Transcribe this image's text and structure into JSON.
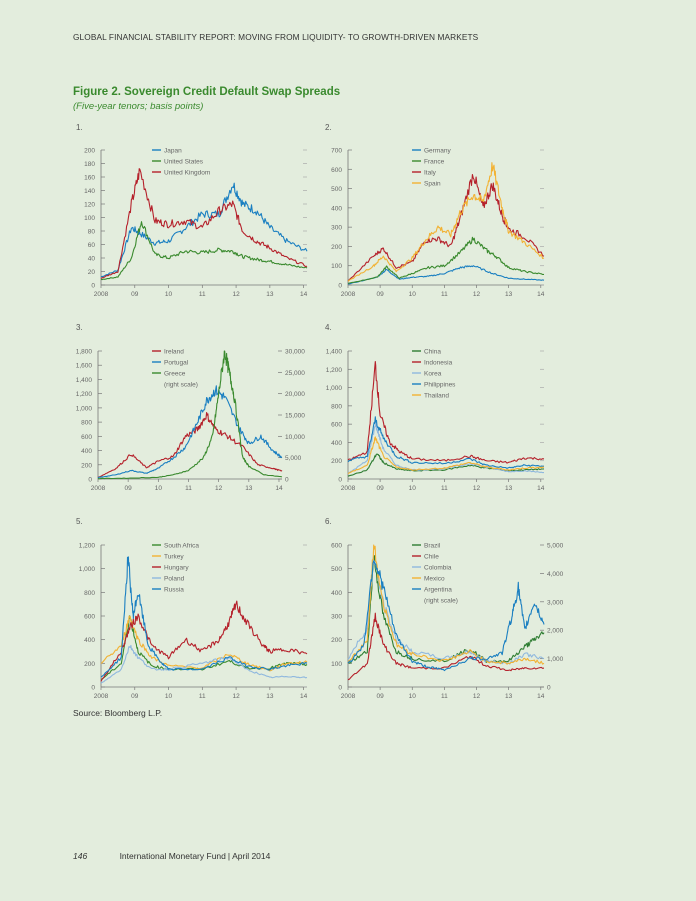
{
  "header": "GLOBAL FINANCIAL STABILITY REPORT: MOVING FROM LIQUIDITY- TO GROWTH-DRIVEN MARKETS",
  "figure": {
    "title": "Figure 2. Sovereign Credit Default Swap Spreads",
    "subtitle": "(Five-year tenors; basis points)"
  },
  "source": "Source: Bloomberg L.P.",
  "footer": {
    "page": "146",
    "publisher": "International Monetary Fund",
    "separator": "|",
    "date": "April 2014"
  },
  "colors": {
    "green": "#3a8a2e",
    "red": "#b5212b",
    "blue": "#1a7fc1",
    "orange": "#f2b233",
    "lightblue": "#8fb8de",
    "darkgreen": "#2e7d32"
  },
  "chart_data": [
    {
      "panel": "1.",
      "type": "line",
      "xlabels": [
        "2008",
        "09",
        "10",
        "11",
        "12",
        "13",
        "14"
      ],
      "xlim": [
        2008,
        2014.1
      ],
      "ylim": [
        0,
        200
      ],
      "yticks": [
        0,
        20,
        40,
        60,
        80,
        100,
        120,
        140,
        160,
        180,
        200
      ],
      "series": [
        {
          "name": "Japan",
          "color": "#1a7fc1",
          "x": [
            2008,
            2008.5,
            2008.9,
            2009.2,
            2009.6,
            2010,
            2010.5,
            2011,
            2011.5,
            2011.9,
            2012.2,
            2012.6,
            2013,
            2013.5,
            2014.1
          ],
          "y": [
            12,
            22,
            85,
            75,
            62,
            65,
            85,
            105,
            105,
            150,
            120,
            110,
            85,
            65,
            50
          ]
        },
        {
          "name": "United States",
          "color": "#3a8a2e",
          "x": [
            2008,
            2008.5,
            2008.9,
            2009.2,
            2009.6,
            2010,
            2010.5,
            2011,
            2011.5,
            2011.9,
            2012.2,
            2012.6,
            2013,
            2013.5,
            2014.1
          ],
          "y": [
            8,
            12,
            40,
            95,
            45,
            40,
            50,
            48,
            52,
            50,
            42,
            38,
            35,
            30,
            25
          ]
        },
        {
          "name": "United Kingdom",
          "color": "#b5212b",
          "x": [
            2008,
            2008.5,
            2008.9,
            2009.15,
            2009.6,
            2010,
            2010.5,
            2011,
            2011.5,
            2011.9,
            2012.2,
            2012.6,
            2013,
            2013.5,
            2014.1
          ],
          "y": [
            10,
            20,
            120,
            170,
            95,
            90,
            95,
            85,
            110,
            120,
            80,
            65,
            55,
            40,
            28
          ]
        }
      ]
    },
    {
      "panel": "2.",
      "type": "line",
      "xlabels": [
        "2008",
        "09",
        "10",
        "11",
        "12",
        "13",
        "14"
      ],
      "xlim": [
        2008,
        2014.1
      ],
      "ylim": [
        0,
        700
      ],
      "yticks": [
        0,
        100,
        200,
        300,
        400,
        500,
        600,
        700
      ],
      "series": [
        {
          "name": "Germany",
          "color": "#1a7fc1",
          "x": [
            2008,
            2008.9,
            2009.2,
            2009.6,
            2010,
            2010.5,
            2011,
            2011.5,
            2011.9,
            2012.5,
            2013,
            2013.5,
            2014.1
          ],
          "y": [
            5,
            40,
            80,
            30,
            40,
            45,
            60,
            90,
            100,
            60,
            35,
            30,
            25
          ]
        },
        {
          "name": "France",
          "color": "#3a8a2e",
          "x": [
            2008,
            2008.9,
            2009.2,
            2009.6,
            2010,
            2010.5,
            2011,
            2011.5,
            2011.9,
            2012.3,
            2012.6,
            2013,
            2013.5,
            2014.1
          ],
          "y": [
            8,
            40,
            95,
            35,
            60,
            90,
            100,
            170,
            240,
            180,
            150,
            90,
            70,
            55
          ]
        },
        {
          "name": "Italy",
          "color": "#b5212b",
          "x": [
            2008,
            2008.8,
            2009.1,
            2009.5,
            2010,
            2010.4,
            2010.8,
            2011.2,
            2011.5,
            2011.9,
            2012.2,
            2012.5,
            2012.8,
            2013,
            2013.5,
            2014.1
          ],
          "y": [
            20,
            150,
            190,
            90,
            120,
            230,
            240,
            200,
            350,
            580,
            400,
            520,
            360,
            290,
            250,
            150
          ]
        },
        {
          "name": "Spain",
          "color": "#f2b233",
          "x": [
            2008,
            2008.8,
            2009.1,
            2009.5,
            2010,
            2010.4,
            2010.8,
            2011.2,
            2011.5,
            2011.9,
            2012.2,
            2012.5,
            2012.8,
            2013,
            2013.5,
            2014.1
          ],
          "y": [
            20,
            100,
            150,
            70,
            140,
            230,
            300,
            260,
            380,
            470,
            430,
            620,
            400,
            280,
            220,
            140
          ]
        }
      ]
    },
    {
      "panel": "3.",
      "type": "line",
      "xlabels": [
        "2008",
        "09",
        "10",
        "11",
        "12",
        "13",
        "14"
      ],
      "xlim": [
        2008,
        2014.1
      ],
      "ylim": [
        0,
        1800
      ],
      "yticks": [
        0,
        200,
        400,
        600,
        800,
        1000,
        1200,
        1400,
        1600,
        1800
      ],
      "y2lim": [
        0,
        30000
      ],
      "y2ticks": [
        0,
        5000,
        10000,
        15000,
        20000,
        25000,
        30000
      ],
      "y2ticklabels": [
        "0",
        "5,000",
        "10,000",
        "15,000",
        "20,000",
        "25,000",
        "30,000"
      ],
      "series": [
        {
          "name": "Ireland",
          "color": "#b5212b",
          "x": [
            2008,
            2008.6,
            2009.1,
            2009.6,
            2010,
            2010.5,
            2010.9,
            2011.3,
            2011.6,
            2011.9,
            2012.3,
            2012.8,
            2013.3,
            2013.8,
            2014.1
          ],
          "y": [
            20,
            150,
            350,
            160,
            250,
            320,
            600,
            700,
            900,
            700,
            600,
            450,
            200,
            150,
            110
          ]
        },
        {
          "name": "Portugal",
          "color": "#1a7fc1",
          "x": [
            2008,
            2008.6,
            2009.1,
            2009.6,
            2010,
            2010.5,
            2010.9,
            2011.3,
            2011.6,
            2011.9,
            2012.2,
            2012.7,
            2013,
            2013.4,
            2013.8,
            2014.1
          ],
          "y": [
            20,
            60,
            120,
            80,
            150,
            300,
            450,
            800,
            1100,
            1250,
            1150,
            700,
            500,
            600,
            400,
            300
          ]
        },
        {
          "name": "Greece",
          "name_line2": "(right scale)",
          "color": "#3a8a2e",
          "axis": "right",
          "x": [
            2008,
            2009,
            2010,
            2010.5,
            2011,
            2011.5,
            2011.8,
            2012,
            2012.2,
            2012.35,
            2012.5,
            2012.8,
            2013,
            2013.5,
            2014.1
          ],
          "y": [
            100,
            200,
            400,
            1000,
            2000,
            5000,
            10000,
            20000,
            30000,
            25000,
            20000,
            5000,
            3000,
            1000,
            500
          ]
        }
      ]
    },
    {
      "panel": "4.",
      "type": "line",
      "xlabels": [
        "2008",
        "09",
        "10",
        "11",
        "12",
        "13",
        "14"
      ],
      "xlim": [
        2008,
        2014.1
      ],
      "ylim": [
        0,
        1400
      ],
      "yticks": [
        0,
        200,
        400,
        600,
        800,
        1000,
        1200,
        1400
      ],
      "series": [
        {
          "name": "China",
          "color": "#2e7d32",
          "x": [
            2008,
            2008.6,
            2008.9,
            2009.1,
            2009.5,
            2010,
            2011,
            2011.8,
            2012.3,
            2013,
            2013.5,
            2014.1
          ],
          "y": [
            30,
            100,
            280,
            180,
            110,
            90,
            100,
            150,
            120,
            90,
            100,
            110
          ]
        },
        {
          "name": "Indonesia",
          "color": "#b5212b",
          "x": [
            2008,
            2008.6,
            2008.85,
            2009,
            2009.3,
            2009.6,
            2010,
            2011,
            2011.8,
            2012.3,
            2013,
            2013.5,
            2014.1
          ],
          "y": [
            200,
            300,
            1250,
            700,
            400,
            300,
            220,
            200,
            250,
            200,
            180,
            230,
            220
          ]
        },
        {
          "name": "Korea",
          "color": "#8fb8de",
          "x": [
            2008,
            2008.6,
            2008.85,
            2009.1,
            2009.5,
            2010,
            2011,
            2011.8,
            2012.3,
            2013,
            2013.5,
            2014.1
          ],
          "y": [
            60,
            200,
            600,
            330,
            150,
            100,
            110,
            170,
            130,
            80,
            90,
            70
          ]
        },
        {
          "name": "Philippines",
          "color": "#1a7fc1",
          "x": [
            2008,
            2008.6,
            2008.85,
            2009.1,
            2009.5,
            2010,
            2011,
            2011.8,
            2012.3,
            2013,
            2013.5,
            2014.1
          ],
          "y": [
            200,
            250,
            650,
            450,
            250,
            180,
            170,
            220,
            150,
            120,
            150,
            140
          ]
        },
        {
          "name": "Thailand",
          "color": "#f2b233",
          "x": [
            2008,
            2008.6,
            2008.85,
            2009.1,
            2009.5,
            2010,
            2011,
            2011.8,
            2012.3,
            2013,
            2013.5,
            2014.1
          ],
          "y": [
            60,
            150,
            450,
            250,
            130,
            100,
            120,
            180,
            130,
            100,
            120,
            130
          ]
        }
      ]
    },
    {
      "panel": "5.",
      "type": "line",
      "xlabels": [
        "2008",
        "09",
        "10",
        "11",
        "12",
        "13",
        "14"
      ],
      "xlim": [
        2008,
        2014.1
      ],
      "ylim": [
        0,
        1200
      ],
      "yticks": [
        0,
        200,
        400,
        600,
        800,
        1000,
        1200
      ],
      "series": [
        {
          "name": "South Africa",
          "color": "#3a8a2e",
          "x": [
            2008,
            2008.6,
            2008.85,
            2009.1,
            2009.5,
            2010,
            2011,
            2011.8,
            2012.3,
            2013,
            2013.5,
            2014.1
          ],
          "y": [
            60,
            200,
            600,
            300,
            180,
            150,
            150,
            220,
            160,
            160,
            200,
            190
          ]
        },
        {
          "name": "Turkey",
          "color": "#f2b233",
          "x": [
            2008,
            2008.6,
            2008.85,
            2009.1,
            2009.5,
            2010,
            2011,
            2011.8,
            2012.3,
            2013,
            2013.5,
            2014.1
          ],
          "y": [
            200,
            350,
            600,
            400,
            250,
            180,
            160,
            280,
            200,
            140,
            200,
            210
          ]
        },
        {
          "name": "Hungary",
          "color": "#b5212b",
          "x": [
            2008,
            2008.6,
            2008.85,
            2009.1,
            2009.5,
            2010,
            2010.5,
            2011,
            2011.5,
            2011.8,
            2012,
            2012.3,
            2012.8,
            2013,
            2013.5,
            2014.1
          ],
          "y": [
            50,
            300,
            500,
            600,
            350,
            250,
            400,
            300,
            400,
            550,
            700,
            550,
            350,
            300,
            320,
            280
          ]
        },
        {
          "name": "Poland",
          "color": "#8fb8de",
          "x": [
            2008,
            2008.6,
            2008.85,
            2009.1,
            2009.5,
            2010,
            2011,
            2011.8,
            2012.3,
            2013,
            2013.5,
            2014.1
          ],
          "y": [
            30,
            150,
            350,
            250,
            150,
            150,
            200,
            250,
            150,
            80,
            90,
            80
          ]
        },
        {
          "name": "Russia",
          "color": "#1a7fc1",
          "x": [
            2008,
            2008.6,
            2008.8,
            2008.95,
            2009.1,
            2009.4,
            2009.8,
            2010,
            2011,
            2011.8,
            2012.3,
            2013,
            2013.5,
            2014.1
          ],
          "y": [
            80,
            250,
            1100,
            600,
            800,
            350,
            200,
            150,
            150,
            250,
            180,
            150,
            180,
            200
          ]
        }
      ]
    },
    {
      "panel": "6.",
      "type": "line",
      "xlabels": [
        "2008",
        "09",
        "10",
        "11",
        "12",
        "13",
        "14"
      ],
      "xlim": [
        2008,
        2014.1
      ],
      "ylim": [
        0,
        600
      ],
      "yticks": [
        0,
        100,
        200,
        300,
        400,
        500,
        600
      ],
      "y2lim": [
        0,
        5000
      ],
      "y2ticks": [
        0,
        1000,
        2000,
        3000,
        4000,
        5000
      ],
      "y2ticklabels": [
        "0",
        "1,000",
        "2,000",
        "3,000",
        "4,000",
        "5,000"
      ],
      "series": [
        {
          "name": "Brazil",
          "color": "#2e7d32",
          "x": [
            2008,
            2008.6,
            2008.8,
            2009.1,
            2009.5,
            2010,
            2011,
            2011.8,
            2012.3,
            2013,
            2013.5,
            2013.8,
            2014.1
          ],
          "y": [
            100,
            150,
            550,
            300,
            150,
            120,
            110,
            160,
            110,
            110,
            170,
            200,
            230
          ]
        },
        {
          "name": "Chile",
          "color": "#b5212b",
          "x": [
            2008,
            2008.6,
            2008.85,
            2009.1,
            2009.5,
            2010,
            2011,
            2011.8,
            2012.3,
            2013,
            2013.5,
            2014.1
          ],
          "y": [
            30,
            100,
            300,
            180,
            100,
            80,
            80,
            130,
            90,
            70,
            80,
            80
          ]
        },
        {
          "name": "Colombia",
          "color": "#8fb8de",
          "x": [
            2008,
            2008.6,
            2008.8,
            2009.1,
            2009.5,
            2010,
            2011,
            2011.8,
            2012.3,
            2013,
            2013.5,
            2014.1
          ],
          "y": [
            120,
            250,
            550,
            350,
            200,
            150,
            120,
            150,
            110,
            100,
            140,
            120
          ]
        },
        {
          "name": "Mexico",
          "color": "#f2b233",
          "x": [
            2008,
            2008.6,
            2008.8,
            2009.1,
            2009.5,
            2010,
            2011,
            2011.8,
            2012.3,
            2013,
            2013.5,
            2014.1
          ],
          "y": [
            100,
            200,
            600,
            350,
            180,
            140,
            110,
            150,
            110,
            100,
            120,
            100
          ]
        },
        {
          "name": "Argentina",
          "name_line2": "(right scale)",
          "color": "#1a7fc1",
          "axis": "right",
          "x": [
            2008,
            2008.5,
            2008.8,
            2009.1,
            2009.5,
            2010,
            2010.5,
            2011,
            2011.8,
            2012.3,
            2012.8,
            2013.1,
            2013.3,
            2013.5,
            2013.8,
            2014.1
          ],
          "y": [
            800,
            1500,
            4600,
            3500,
            1800,
            900,
            700,
            600,
            1000,
            1000,
            1200,
            2500,
            3500,
            2000,
            3000,
            2200
          ]
        }
      ]
    }
  ]
}
